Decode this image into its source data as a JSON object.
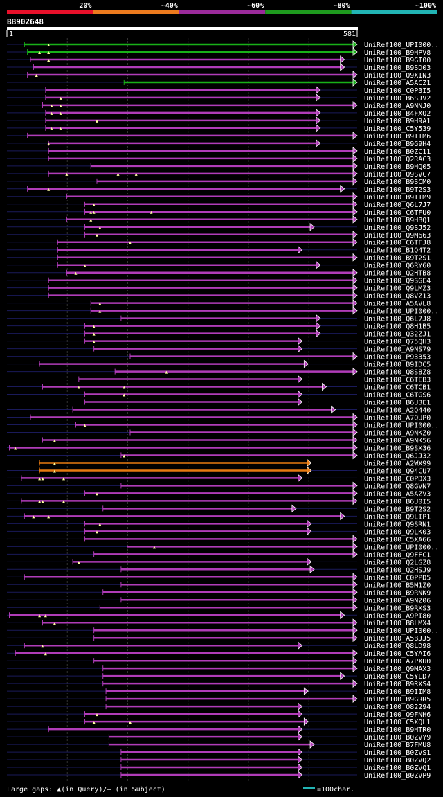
{
  "legend": {
    "labels": [
      "20%",
      "~40%",
      "~60%",
      "~80%",
      "~100%"
    ],
    "colors": [
      "#e8102a",
      "#ec7a1e",
      "#9a2a9a",
      "#1e9a1e",
      "#22b4b4"
    ]
  },
  "query": {
    "id": "BB902648",
    "start": "1",
    "end": "581"
  },
  "row_colors": {
    "magenta": "#b03cb8",
    "green": "#18b018",
    "orange": "#e87a10"
  },
  "footer": {
    "gaps_label": "Large gaps: ▲(in Query)/– (in Subject)",
    "scale_label": "=100char.",
    "scale_color": "#22b4b4"
  },
  "hits": [
    {
      "name": "UniRef100_UPI000..",
      "start": 30,
      "end": 581,
      "color": "green",
      "tri": [
        70
      ]
    },
    {
      "name": "UniRef100_B9HPV8",
      "start": 35,
      "end": 581,
      "color": "green",
      "tri": [
        55,
        70
      ]
    },
    {
      "name": "UniRef100_B9GI00",
      "start": 40,
      "end": 560,
      "color": "magenta",
      "tri": [
        70
      ]
    },
    {
      "name": "UniRef100_B9SD03",
      "start": 45,
      "end": 560,
      "color": "magenta",
      "tri": []
    },
    {
      "name": "UniRef100_Q9XIN3",
      "start": 35,
      "end": 581,
      "color": "magenta",
      "tri": [
        50
      ]
    },
    {
      "name": "UniRef100_A5ACZ1",
      "start": 195,
      "end": 581,
      "color": "green",
      "tri": []
    },
    {
      "name": "UniRef100_C0P3I5",
      "start": 65,
      "end": 520,
      "color": "magenta",
      "tri": []
    },
    {
      "name": "UniRef100_B6SJV2",
      "start": 65,
      "end": 520,
      "color": "magenta",
      "tri": [
        90
      ]
    },
    {
      "name": "UniRef100_A9NNJ0",
      "start": 60,
      "end": 581,
      "color": "magenta",
      "tri": [
        75,
        90
      ]
    },
    {
      "name": "UniRef100_B4FXQ2",
      "start": 65,
      "end": 520,
      "color": "magenta",
      "tri": [
        75,
        90
      ]
    },
    {
      "name": "UniRef100_B9H9A1",
      "start": 65,
      "end": 520,
      "color": "magenta",
      "tri": [
        150
      ]
    },
    {
      "name": "UniRef100_C5Y539",
      "start": 65,
      "end": 520,
      "color": "magenta",
      "tri": [
        75,
        90
      ]
    },
    {
      "name": "UniRef100_B9IIM6",
      "start": 35,
      "end": 581,
      "color": "magenta",
      "tri": []
    },
    {
      "name": "UniRef100_B9G9H4",
      "start": 70,
      "end": 520,
      "color": "magenta",
      "tri": [
        70
      ]
    },
    {
      "name": "UniRef100_B0ZC11",
      "start": 70,
      "end": 581,
      "color": "magenta",
      "tri": []
    },
    {
      "name": "UniRef100_Q2RAC3",
      "start": 70,
      "end": 581,
      "color": "magenta",
      "tri": []
    },
    {
      "name": "UniRef100_B9HQ05",
      "start": 140,
      "end": 581,
      "color": "magenta",
      "tri": []
    },
    {
      "name": "UniRef100_Q9SVC7",
      "start": 70,
      "end": 581,
      "color": "magenta",
      "tri": [
        100,
        185,
        215
      ]
    },
    {
      "name": "UniRef100_B9SCM0",
      "start": 150,
      "end": 581,
      "color": "magenta",
      "tri": []
    },
    {
      "name": "UniRef100_B9T2S3",
      "start": 35,
      "end": 560,
      "color": "magenta",
      "tri": [
        70
      ]
    },
    {
      "name": "UniRef100_B9IIM9",
      "start": 100,
      "end": 581,
      "color": "magenta",
      "tri": []
    },
    {
      "name": "UniRef100_Q6L7J7",
      "start": 130,
      "end": 581,
      "color": "magenta",
      "tri": [
        145
      ]
    },
    {
      "name": "UniRef100_C6TFU0",
      "start": 130,
      "end": 581,
      "color": "magenta",
      "tri": [
        140,
        145,
        240
      ]
    },
    {
      "name": "UniRef100_B9HBQ1",
      "start": 100,
      "end": 581,
      "color": "magenta",
      "tri": [
        140
      ]
    },
    {
      "name": "UniRef100_Q9SJ52",
      "start": 130,
      "end": 510,
      "color": "magenta",
      "tri": [
        155
      ]
    },
    {
      "name": "UniRef100_Q9M663",
      "start": 130,
      "end": 581,
      "color": "magenta",
      "tri": [
        150
      ]
    },
    {
      "name": "UniRef100_C6TFJ8",
      "start": 85,
      "end": 581,
      "color": "magenta",
      "tri": [
        205
      ]
    },
    {
      "name": "UniRef100_B1Q4T2",
      "start": 85,
      "end": 490,
      "color": "magenta",
      "tri": []
    },
    {
      "name": "UniRef100_B9T2S1",
      "start": 85,
      "end": 581,
      "color": "magenta",
      "tri": []
    },
    {
      "name": "UniRef100_Q6RY60",
      "start": 85,
      "end": 520,
      "color": "magenta",
      "tri": [
        130
      ]
    },
    {
      "name": "UniRef100_Q2HTB8",
      "start": 100,
      "end": 581,
      "color": "magenta",
      "tri": [
        115
      ]
    },
    {
      "name": "UniRef100_Q9SGE4",
      "start": 70,
      "end": 581,
      "color": "magenta",
      "tri": []
    },
    {
      "name": "UniRef100_Q9LMZ3",
      "start": 70,
      "end": 581,
      "color": "magenta",
      "tri": []
    },
    {
      "name": "UniRef100_Q8VZ13",
      "start": 70,
      "end": 581,
      "color": "magenta",
      "tri": []
    },
    {
      "name": "UniRef100_A5AVL8",
      "start": 140,
      "end": 581,
      "color": "magenta",
      "tri": [
        155
      ]
    },
    {
      "name": "UniRef100_UPI000..",
      "start": 140,
      "end": 581,
      "color": "magenta",
      "tri": [
        155
      ]
    },
    {
      "name": "UniRef100_Q6L7J8",
      "start": 190,
      "end": 520,
      "color": "magenta",
      "tri": []
    },
    {
      "name": "UniRef100_Q8H1B5",
      "start": 130,
      "end": 520,
      "color": "magenta",
      "tri": [
        145
      ]
    },
    {
      "name": "UniRef100_Q32ZJ1",
      "start": 130,
      "end": 520,
      "color": "magenta",
      "tri": [
        145
      ]
    },
    {
      "name": "UniRef100_Q75QH3",
      "start": 130,
      "end": 490,
      "color": "magenta",
      "tri": [
        145
      ]
    },
    {
      "name": "UniRef100_A9NS79",
      "start": 145,
      "end": 490,
      "color": "magenta",
      "tri": []
    },
    {
      "name": "UniRef100_P93353",
      "start": 205,
      "end": 581,
      "color": "magenta",
      "tri": []
    },
    {
      "name": "UniRef100_B9IDC5",
      "start": 55,
      "end": 500,
      "color": "magenta",
      "tri": []
    },
    {
      "name": "UniRef100_Q8S8Z8",
      "start": 180,
      "end": 581,
      "color": "magenta",
      "tri": [
        265
      ]
    },
    {
      "name": "UniRef100_C6TEB3",
      "start": 120,
      "end": 490,
      "color": "magenta",
      "tri": []
    },
    {
      "name": "UniRef100_C6TCB1",
      "start": 60,
      "end": 530,
      "color": "magenta",
      "tri": [
        120,
        195
      ]
    },
    {
      "name": "UniRef100_C6TGS6",
      "start": 130,
      "end": 490,
      "color": "magenta",
      "tri": [
        195
      ]
    },
    {
      "name": "UniRef100_B6U3E1",
      "start": 130,
      "end": 490,
      "color": "magenta",
      "tri": []
    },
    {
      "name": "UniRef100_A2Q440",
      "start": 110,
      "end": 545,
      "color": "magenta",
      "tri": []
    },
    {
      "name": "UniRef100_A7QUP0",
      "start": 40,
      "end": 581,
      "color": "magenta",
      "tri": []
    },
    {
      "name": "UniRef100_UPI000..",
      "start": 115,
      "end": 581,
      "color": "magenta",
      "tri": [
        130
      ]
    },
    {
      "name": "UniRef100_A9NKZ0",
      "start": 205,
      "end": 581,
      "color": "magenta",
      "tri": []
    },
    {
      "name": "UniRef100_A9NK56",
      "start": 60,
      "end": 581,
      "color": "magenta",
      "tri": [
        80
      ]
    },
    {
      "name": "UniRef100_B9SX36",
      "start": 5,
      "end": 581,
      "color": "magenta",
      "tri": [
        15
      ]
    },
    {
      "name": "UniRef100_Q6JJ32",
      "start": 190,
      "end": 581,
      "color": "magenta",
      "tri": [
        195
      ]
    },
    {
      "name": "UniRef100_A2WX99",
      "start": 55,
      "end": 505,
      "color": "orange",
      "tri": [
        80
      ]
    },
    {
      "name": "UniRef100_Q94CU7",
      "start": 55,
      "end": 505,
      "color": "orange",
      "tri": [
        80
      ]
    },
    {
      "name": "UniRef100_C0PDX3",
      "start": 25,
      "end": 490,
      "color": "magenta",
      "tri": [
        55,
        60,
        95
      ]
    },
    {
      "name": "UniRef100_Q8GVN7",
      "start": 190,
      "end": 581,
      "color": "magenta",
      "tri": []
    },
    {
      "name": "UniRef100_A5AZV3",
      "start": 130,
      "end": 581,
      "color": "magenta",
      "tri": [
        150
      ]
    },
    {
      "name": "UniRef100_B6U0I5",
      "start": 25,
      "end": 581,
      "color": "magenta",
      "tri": [
        55,
        60,
        95
      ]
    },
    {
      "name": "UniRef100_B9T2S2",
      "start": 160,
      "end": 480,
      "color": "magenta",
      "tri": []
    },
    {
      "name": "UniRef100_Q9LIP1",
      "start": 30,
      "end": 560,
      "color": "magenta",
      "tri": [
        45,
        70
      ]
    },
    {
      "name": "UniRef100_Q9SRN1",
      "start": 130,
      "end": 505,
      "color": "magenta",
      "tri": [
        155
      ]
    },
    {
      "name": "UniRef100_Q9LK03",
      "start": 130,
      "end": 505,
      "color": "magenta",
      "tri": [
        150
      ]
    },
    {
      "name": "UniRef100_C5XA66",
      "start": 130,
      "end": 581,
      "color": "magenta",
      "tri": []
    },
    {
      "name": "UniRef100_UPI000..",
      "start": 200,
      "end": 581,
      "color": "magenta",
      "tri": [
        245
      ]
    },
    {
      "name": "UniRef100_Q9FFC1",
      "start": 145,
      "end": 581,
      "color": "magenta",
      "tri": []
    },
    {
      "name": "UniRef100_Q2LGZ8",
      "start": 110,
      "end": 505,
      "color": "magenta",
      "tri": [
        120
      ]
    },
    {
      "name": "UniRef100_Q2HSJ9",
      "start": 190,
      "end": 510,
      "color": "magenta",
      "tri": []
    },
    {
      "name": "UniRef100_C0PPD5",
      "start": 30,
      "end": 581,
      "color": "magenta",
      "tri": []
    },
    {
      "name": "UniRef100_B5M1Z0",
      "start": 190,
      "end": 581,
      "color": "magenta",
      "tri": []
    },
    {
      "name": "UniRef100_B9RNK9",
      "start": 160,
      "end": 581,
      "color": "magenta",
      "tri": []
    },
    {
      "name": "UniRef100_A9NZ06",
      "start": 190,
      "end": 581,
      "color": "magenta",
      "tri": []
    },
    {
      "name": "UniRef100_B9RXS3",
      "start": 155,
      "end": 581,
      "color": "magenta",
      "tri": []
    },
    {
      "name": "UniRef100_A9PI80",
      "start": 5,
      "end": 560,
      "color": "magenta",
      "tri": [
        55,
        65
      ]
    },
    {
      "name": "UniRef100_B8LMX4",
      "start": 60,
      "end": 581,
      "color": "magenta",
      "tri": [
        80
      ]
    },
    {
      "name": "UniRef100_UPI000..",
      "start": 145,
      "end": 581,
      "color": "magenta",
      "tri": []
    },
    {
      "name": "UniRef100_A5BJJ5",
      "start": 145,
      "end": 581,
      "color": "magenta",
      "tri": []
    },
    {
      "name": "UniRef100_Q8LD98",
      "start": 30,
      "end": 490,
      "color": "magenta",
      "tri": [
        60
      ]
    },
    {
      "name": "UniRef100_C5YAI6",
      "start": 15,
      "end": 581,
      "color": "magenta",
      "tri": [
        65
      ]
    },
    {
      "name": "UniRef100_A7PXU0",
      "start": 145,
      "end": 581,
      "color": "magenta",
      "tri": []
    },
    {
      "name": "UniRef100_Q9MAX3",
      "start": 160,
      "end": 581,
      "color": "magenta",
      "tri": []
    },
    {
      "name": "UniRef100_C5YLD7",
      "start": 160,
      "end": 560,
      "color": "magenta",
      "tri": []
    },
    {
      "name": "UniRef100_B9RXS4",
      "start": 160,
      "end": 581,
      "color": "magenta",
      "tri": []
    },
    {
      "name": "UniRef100_B9IIM8",
      "start": 165,
      "end": 500,
      "color": "magenta",
      "tri": []
    },
    {
      "name": "UniRef100_B9GRR5",
      "start": 165,
      "end": 581,
      "color": "magenta",
      "tri": []
    },
    {
      "name": "UniRef100_O82294",
      "start": 165,
      "end": 490,
      "color": "magenta",
      "tri": []
    },
    {
      "name": "UniRef100_Q9FNH6",
      "start": 130,
      "end": 490,
      "color": "magenta",
      "tri": [
        150
      ]
    },
    {
      "name": "UniRef100_C5XQL1",
      "start": 130,
      "end": 500,
      "color": "magenta",
      "tri": [
        145,
        205
      ]
    },
    {
      "name": "UniRef100_B9HTR0",
      "start": 70,
      "end": 490,
      "color": "magenta",
      "tri": []
    },
    {
      "name": "UniRef100_B0ZVY9",
      "start": 170,
      "end": 490,
      "color": "magenta",
      "tri": []
    },
    {
      "name": "UniRef100_B7FMU8",
      "start": 170,
      "end": 510,
      "color": "magenta",
      "tri": []
    },
    {
      "name": "UniRef100_B0ZVS1",
      "start": 190,
      "end": 490,
      "color": "magenta",
      "tri": []
    },
    {
      "name": "UniRef100_B0ZVQ2",
      "start": 190,
      "end": 490,
      "color": "magenta",
      "tri": []
    },
    {
      "name": "UniRef100_B0ZVQ1",
      "start": 190,
      "end": 490,
      "color": "magenta",
      "tri": []
    },
    {
      "name": "UniRef100_B0ZVP9",
      "start": 190,
      "end": 490,
      "color": "magenta",
      "tri": []
    }
  ]
}
